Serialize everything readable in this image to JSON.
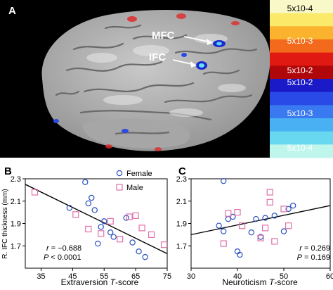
{
  "panel_a": {
    "label": "A",
    "annotations": {
      "mfc": "MFC",
      "ifc": "IFC"
    },
    "colorbar": {
      "labels": [
        "5x10-4",
        "5x10-3",
        "5x10-2",
        "5x10-2",
        "5x10-3",
        "5x10-4"
      ],
      "warm_colors": [
        "#f8f8c8",
        "#fbe96a",
        "#fbb22c",
        "#f36a1c",
        "#e01a12",
        "#b0080a"
      ],
      "cool_colors": [
        "#1a1ac8",
        "#2a4ae8",
        "#3a7af0",
        "#4ab0f4",
        "#68d8f0",
        "#bff6ec"
      ]
    }
  },
  "panel_b": {
    "label": "B",
    "legend": {
      "female": "Female",
      "male": "Male"
    },
    "stats": {
      "r_label": "r",
      "r_value": " = −0.688",
      "p_label": "P",
      "p_value": " < 0.0001"
    }
  },
  "panel_c": {
    "label": "C",
    "stats": {
      "r_label": "r",
      "r_value": " = 0.269",
      "p_label": "P",
      "p_value": " = 0.169"
    }
  },
  "colors": {
    "female": "#2a4fbf",
    "male": "#e070a8",
    "line": "#000000"
  },
  "chart_data": [
    {
      "type": "scatter",
      "title": "",
      "xlabel": "Extraversion T-score",
      "ylabel": "R. IFC thickness (mm)",
      "xlim": [
        30,
        75
      ],
      "ylim": [
        1.5,
        2.3
      ],
      "xticks": [
        "35",
        "45",
        "55",
        "65",
        "75"
      ],
      "yticks": [
        "1.7",
        "1.9",
        "2.1",
        "2.3"
      ],
      "series": [
        {
          "name": "Female",
          "x": [
            44,
            49,
            50,
            51,
            52,
            53,
            54,
            55,
            57,
            58,
            62,
            64,
            66,
            68
          ],
          "y": [
            2.04,
            2.27,
            2.08,
            2.13,
            2.02,
            1.72,
            1.87,
            1.92,
            1.82,
            1.78,
            1.95,
            1.73,
            1.65,
            1.6
          ]
        },
        {
          "name": "Male",
          "x": [
            33,
            46,
            50,
            54,
            57,
            60,
            63,
            65,
            67,
            70,
            74
          ],
          "y": [
            2.18,
            1.98,
            1.85,
            1.81,
            1.92,
            1.76,
            1.96,
            1.97,
            1.86,
            1.8,
            1.71
          ]
        }
      ],
      "fit": {
        "x": [
          30,
          75
        ],
        "y": [
          2.25,
          1.63
        ]
      }
    },
    {
      "type": "scatter",
      "title": "",
      "xlabel": "Neuroticism T-score",
      "ylabel": "",
      "xlim": [
        30,
        60
      ],
      "ylim": [
        1.5,
        2.3
      ],
      "xticks": [
        "30",
        "40",
        "50",
        "60"
      ],
      "yticks": [
        "1.7",
        "1.9",
        "2.1",
        "2.3"
      ],
      "series": [
        {
          "name": "Female",
          "x": [
            36,
            37,
            37,
            38,
            39,
            40,
            40.5,
            43,
            44,
            45,
            46,
            48,
            50,
            51,
            52
          ],
          "y": [
            1.88,
            1.83,
            2.28,
            1.94,
            1.96,
            1.65,
            1.62,
            1.82,
            1.94,
            1.78,
            1.95,
            1.97,
            1.83,
            2.03,
            2.06
          ]
        },
        {
          "name": "Male",
          "x": [
            37,
            38,
            40,
            41,
            45,
            46,
            47,
            47,
            48,
            50,
            51
          ],
          "y": [
            1.72,
            1.99,
            2.0,
            1.88,
            1.77,
            1.86,
            2.18,
            2.09,
            1.74,
            2.03,
            1.88
          ]
        }
      ],
      "fit": {
        "x": [
          30,
          60
        ],
        "y": [
          1.8,
          2.06
        ]
      }
    }
  ]
}
